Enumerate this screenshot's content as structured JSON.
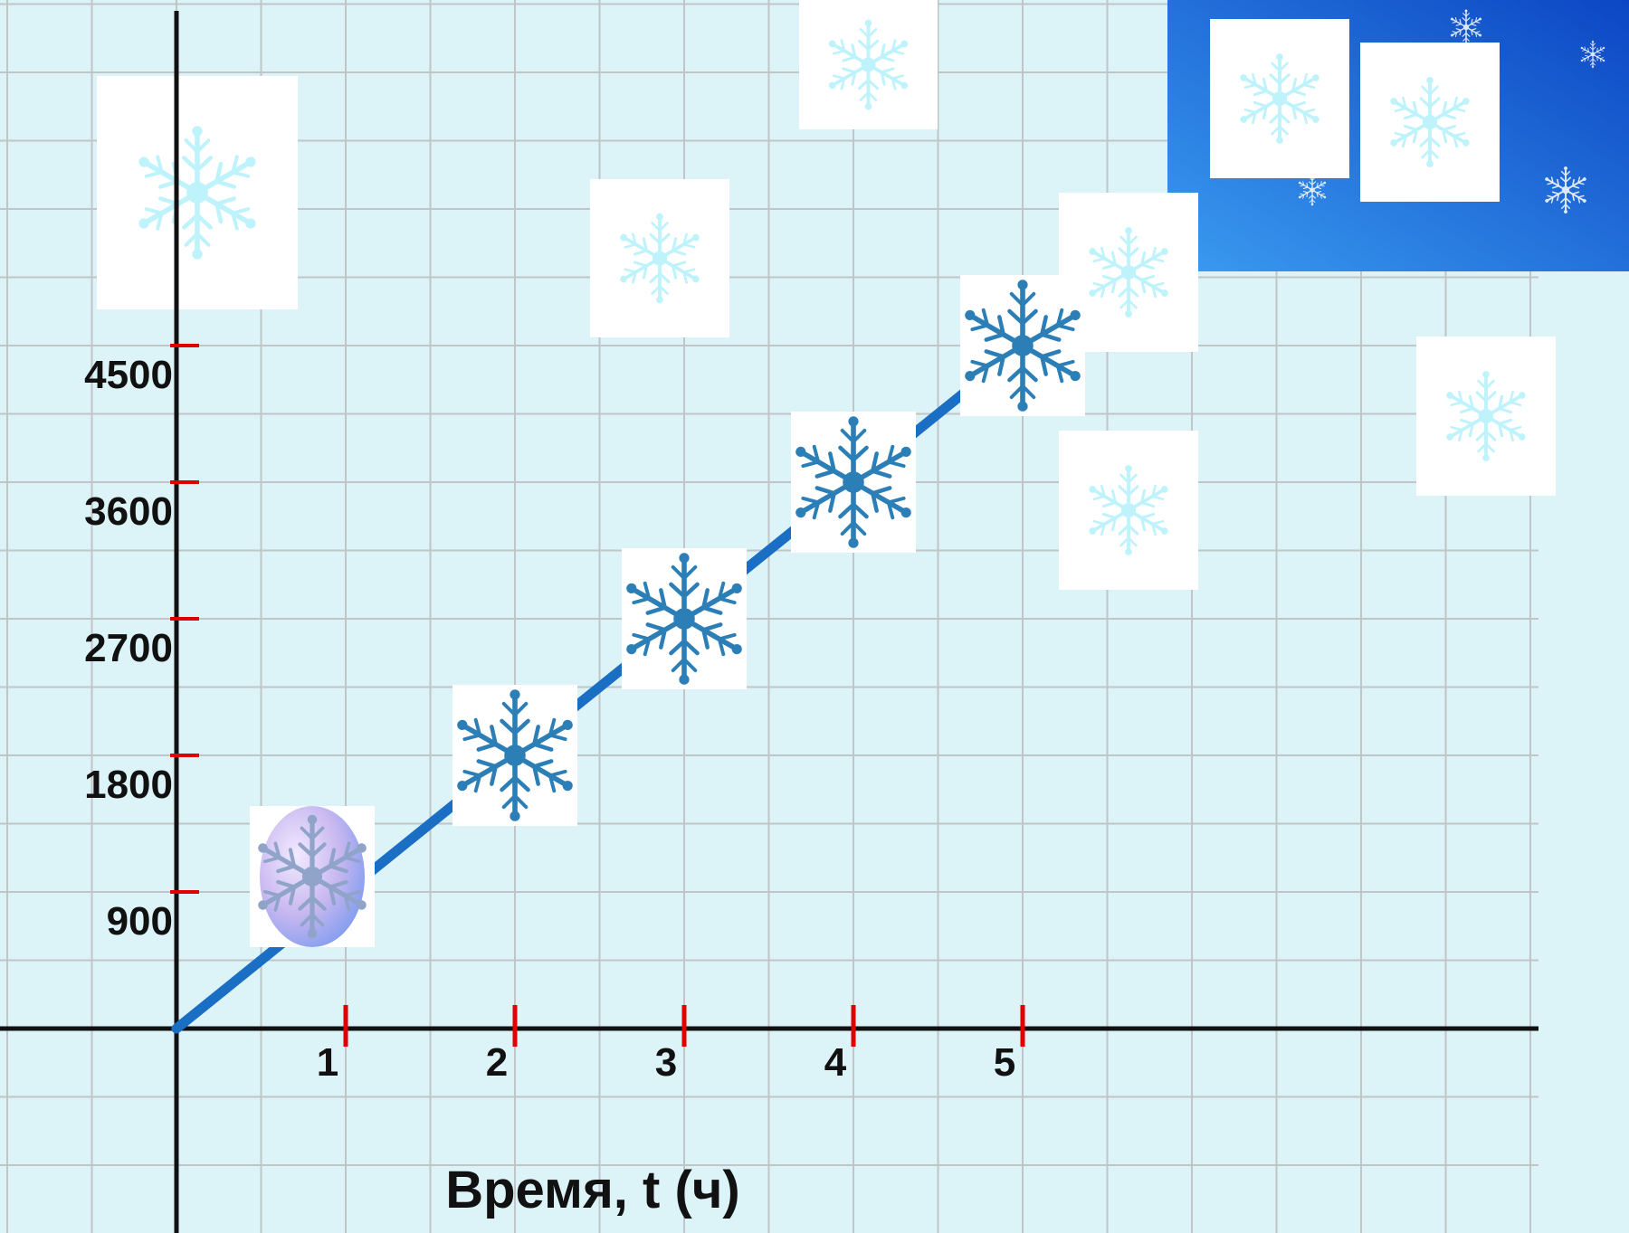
{
  "colors": {
    "background": "#dcf3f8",
    "grid": "#c0c5c8",
    "axis": "#111111",
    "tick": "#e00000",
    "line": "#1a6fc4",
    "snowflake_marker": "#2c7fb6",
    "snowflake_faint": "#bff3fb",
    "corner_blue": "#1867d8"
  },
  "icons": {
    "marker": "snowflake-icon",
    "decor": "snowflake-icon"
  },
  "chart_data": {
    "type": "line",
    "xlabel": "Время, t (ч)",
    "ylabel": "",
    "x_ticks": [
      "1",
      "2",
      "3",
      "4",
      "5"
    ],
    "y_ticks": [
      "900",
      "1800",
      "2700",
      "3600",
      "4500"
    ],
    "xlim": [
      -1,
      8
    ],
    "ylim": [
      -900,
      6750
    ],
    "grid": true,
    "series": [
      {
        "x": [
          0,
          1,
          2,
          3,
          4,
          5
        ],
        "y": [
          0,
          900,
          1800,
          2700,
          3600,
          4500
        ]
      }
    ]
  }
}
